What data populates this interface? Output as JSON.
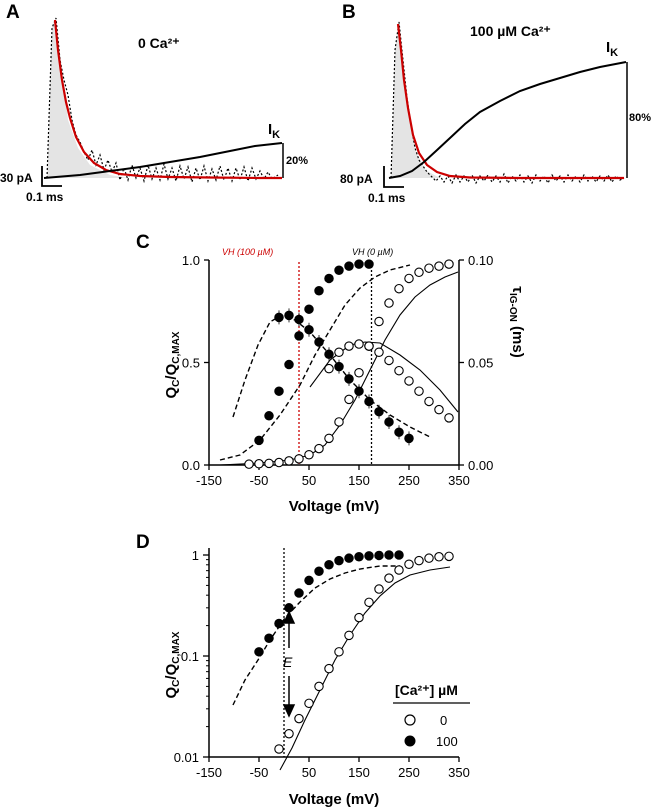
{
  "colors": {
    "fit": "#cc0000",
    "data": "#000000",
    "shade": "#e4e4e4",
    "vline_red": "#cc0000"
  },
  "panelA": {
    "letter": "A",
    "title": "0 Ca²⁺",
    "ik_label": "I",
    "ik_sub": "K",
    "pct": "20%",
    "scale_y": "30 pA",
    "scale_x": "0.1 ms"
  },
  "panelB": {
    "letter": "B",
    "title": "100 µM Ca²⁺",
    "ik_label": "I",
    "ik_sub": "K",
    "pct": "80%",
    "scale_y": "80 pA",
    "scale_x": "0.1 ms"
  },
  "panelC": {
    "letter": "C",
    "ylabel_left": "QC/QC,MAX",
    "ylabel_right": "τIG-ON (ms)",
    "xlabel": "Voltage (mV)",
    "vh_red": "VH (100 µM)",
    "vh_black": "VH (0 µM)"
  },
  "panelD": {
    "letter": "D",
    "ylabel": "QC/QC,MAX",
    "xlabel": "Voltage (mV)",
    "arrow_label": "E",
    "legend_title": "[Ca²⁺] µM",
    "legend": [
      "0",
      "100"
    ]
  },
  "chart_data": [
    {
      "id": "C",
      "type": "scatter",
      "xlim": [
        -150,
        350
      ],
      "ylim": [
        0,
        1
      ],
      "y2lim": [
        0,
        0.1
      ],
      "xticks": [
        "-150",
        "-50",
        "50",
        "150",
        "250",
        "350"
      ],
      "yticks": [
        "0.0",
        "0.5",
        "1.0"
      ],
      "y2ticks": [
        "0.00",
        "0.05",
        "0.10"
      ],
      "vlines": [
        30,
        175
      ],
      "series": [
        {
          "name": "Q 0 Ca",
          "axis": "left",
          "marker": "open",
          "x": [
            -70,
            -50,
            -30,
            -10,
            10,
            30,
            50,
            70,
            90,
            110,
            130,
            150,
            170,
            190,
            210,
            230,
            250,
            270,
            290,
            310,
            330
          ],
          "y": [
            0.004,
            0.006,
            0.008,
            0.012,
            0.02,
            0.03,
            0.05,
            0.08,
            0.13,
            0.21,
            0.32,
            0.45,
            0.58,
            0.7,
            0.79,
            0.86,
            0.91,
            0.94,
            0.96,
            0.97,
            0.98
          ]
        },
        {
          "name": "Q 100 Ca",
          "axis": "left",
          "marker": "filled",
          "x": [
            -50,
            -30,
            -10,
            10,
            30,
            50,
            70,
            90,
            110,
            130,
            150,
            170
          ],
          "y": [
            0.12,
            0.24,
            0.36,
            0.49,
            0.63,
            0.76,
            0.85,
            0.91,
            0.95,
            0.97,
            0.98,
            0.98
          ]
        },
        {
          "name": "tau 0 Ca",
          "axis": "right",
          "marker": "open",
          "x": [
            90,
            110,
            130,
            150,
            170,
            190,
            210,
            230,
            250,
            270,
            290,
            310,
            330
          ],
          "y": [
            0.047,
            0.055,
            0.058,
            0.059,
            0.058,
            0.055,
            0.051,
            0.046,
            0.041,
            0.036,
            0.031,
            0.027,
            0.023
          ]
        },
        {
          "name": "tau 100 Ca",
          "axis": "right",
          "marker": "filled",
          "x": [
            -10,
            10,
            30,
            50,
            70,
            90,
            110,
            130,
            150,
            170,
            190,
            210,
            230,
            250
          ],
          "y": [
            0.072,
            0.073,
            0.071,
            0.066,
            0.06,
            0.054,
            0.048,
            0.042,
            0.036,
            0.031,
            0.026,
            0.021,
            0.016,
            0.013
          ]
        }
      ]
    },
    {
      "id": "D",
      "type": "scatter",
      "xlim": [
        -150,
        350
      ],
      "ylim": [
        0.01,
        1
      ],
      "yscale": "log",
      "xticks": [
        "-150",
        "-50",
        "50",
        "150",
        "250",
        "350"
      ],
      "yticks": [
        "0.01",
        "0.1",
        "1"
      ],
      "vlines": [
        0
      ],
      "series": [
        {
          "name": "0",
          "marker": "open",
          "x": [
            -10,
            10,
            30,
            50,
            70,
            90,
            110,
            130,
            150,
            170,
            190,
            210,
            230,
            250,
            270,
            290,
            310,
            330
          ],
          "y": [
            0.012,
            0.017,
            0.024,
            0.034,
            0.05,
            0.075,
            0.11,
            0.16,
            0.24,
            0.34,
            0.46,
            0.59,
            0.71,
            0.81,
            0.88,
            0.93,
            0.96,
            0.97
          ]
        },
        {
          "name": "100",
          "marker": "filled",
          "x": [
            -50,
            -30,
            -10,
            10,
            30,
            50,
            70,
            90,
            110,
            130,
            150,
            170,
            190,
            210,
            230
          ],
          "y": [
            0.11,
            0.15,
            0.21,
            0.3,
            0.42,
            0.56,
            0.69,
            0.8,
            0.88,
            0.93,
            0.96,
            0.98,
            0.99,
            1.0,
            1.0
          ]
        }
      ]
    }
  ]
}
